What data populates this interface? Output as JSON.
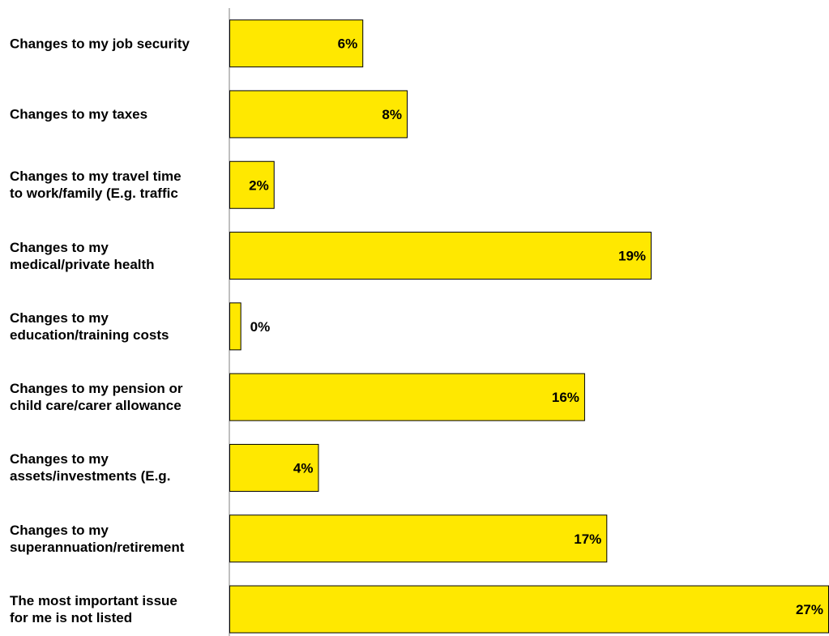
{
  "chart_data": {
    "type": "bar",
    "orientation": "horizontal",
    "categories": [
      [
        "Changes to my job security"
      ],
      [
        "Changes to my taxes"
      ],
      [
        "Changes to my travel time",
        "to work/family (E.g. traffic"
      ],
      [
        "Changes to my",
        "medical/private health"
      ],
      [
        "Changes to my",
        "education/training costs"
      ],
      [
        "Changes to my pension or",
        "child care/carer allowance"
      ],
      [
        "Changes to my",
        "assets/investments (E.g."
      ],
      [
        "Changes to my",
        "superannuation/retirement"
      ],
      [
        "The most important issue",
        "for me is not listed"
      ]
    ],
    "values": [
      6,
      8,
      2,
      19,
      0.5,
      16,
      4,
      17,
      27
    ],
    "value_labels": [
      "6%",
      "8%",
      "2%",
      "19%",
      "0%",
      "16%",
      "4%",
      "17%",
      "27%"
    ],
    "xlim": [
      0,
      27
    ],
    "grid": false,
    "colors": {
      "bar_fill": "#FFE800",
      "bar_stroke": "#000000",
      "axis": "#7f7f7f"
    }
  }
}
